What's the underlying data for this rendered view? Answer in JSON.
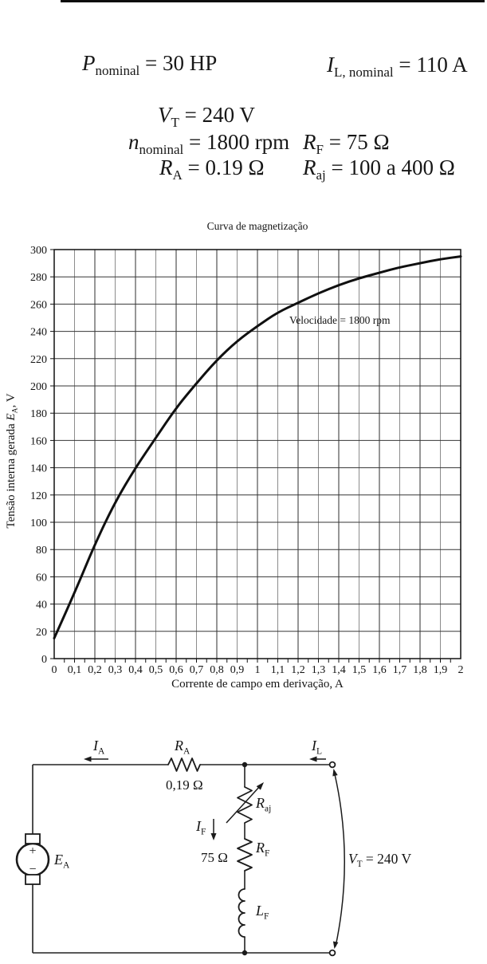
{
  "specs": {
    "p_nominal": [
      {
        "v": "P"
      },
      {
        "s": "nominal"
      },
      {
        "t": " = 30 HP"
      }
    ],
    "il_nominal": [
      {
        "v": "I"
      },
      {
        "s": "L, nominal"
      },
      {
        "t": " = 110 A"
      }
    ],
    "vt": [
      {
        "v": "V"
      },
      {
        "s": "T"
      },
      {
        "t": " = 240 V"
      }
    ],
    "n_nominal": [
      {
        "v": "n"
      },
      {
        "s": "nominal"
      },
      {
        "t": " = 1800 rpm"
      }
    ],
    "rf": [
      {
        "v": "R"
      },
      {
        "s": "F"
      },
      {
        "t": " = 75 Ω"
      }
    ],
    "ra": [
      {
        "v": "R"
      },
      {
        "s": "A"
      },
      {
        "t": " = 0.19 Ω"
      }
    ],
    "raj": [
      {
        "v": "R"
      },
      {
        "s": "aj"
      },
      {
        "t": " = 100 a 400 Ω"
      }
    ]
  },
  "chart_data": {
    "type": "line",
    "title": "Curva de magnetização",
    "xlabel": "Corrente de campo em derivação, A",
    "ylabel": "Tensão interna gerada E_A, V",
    "ylabel_segments": [
      {
        "t": "Tensão interna gerada "
      },
      {
        "v": "E"
      },
      {
        "s": "A"
      },
      {
        "t": ", V"
      }
    ],
    "annotation": "Velocidade = 1800 rpm",
    "xlim": [
      0,
      2
    ],
    "ylim": [
      0,
      300
    ],
    "x_gridline_step": 0.1,
    "y_gridline_step": 20,
    "x_minor_tick_step": 0.05,
    "grid": true,
    "x_tick_labels": [
      "0",
      "0,1",
      "0,2",
      "0,3",
      "0,4",
      "0,5",
      "0,6",
      "0,7",
      "0,8",
      "0,9",
      "1",
      "1,1",
      "1,2",
      "1,3",
      "1,4",
      "1,5",
      "1,6",
      "1,7",
      "1,8",
      "1,9",
      "2"
    ],
    "y_tick_labels": [
      "0",
      "20",
      "40",
      "60",
      "80",
      "100",
      "120",
      "140",
      "160",
      "180",
      "200",
      "220",
      "240",
      "260",
      "280",
      "300"
    ],
    "x": [
      0,
      0.1,
      0.2,
      0.3,
      0.4,
      0.5,
      0.6,
      0.7,
      0.8,
      0.9,
      1.0,
      1.1,
      1.2,
      1.3,
      1.4,
      1.5,
      1.6,
      1.7,
      1.8,
      1.9,
      2.0
    ],
    "y": [
      15,
      48,
      84,
      115,
      140,
      162,
      184,
      202,
      219,
      233,
      244,
      254,
      261,
      268,
      274,
      279,
      283,
      287,
      290,
      293,
      295
    ]
  },
  "circuit": {
    "labels": {
      "ia": [
        {
          "v": "I"
        },
        {
          "s": "A"
        }
      ],
      "ra": [
        {
          "v": "R"
        },
        {
          "s": "A"
        }
      ],
      "ra_value": "0,19 Ω",
      "il": [
        {
          "v": "I"
        },
        {
          "s": "L"
        }
      ],
      "raj": [
        {
          "v": "R"
        },
        {
          "s": "aj"
        }
      ],
      "if": [
        {
          "v": "I"
        },
        {
          "s": "F"
        }
      ],
      "rf": [
        {
          "v": "R"
        },
        {
          "s": "F"
        }
      ],
      "rf_value": "75 Ω",
      "lf": [
        {
          "v": "L"
        },
        {
          "s": "F"
        }
      ],
      "ea": [
        {
          "v": "E"
        },
        {
          "s": "A"
        }
      ],
      "vt": [
        {
          "v": "V"
        },
        {
          "s": "T"
        },
        {
          "t": " = 240 V"
        }
      ],
      "plus": "+",
      "minus": "−"
    }
  }
}
